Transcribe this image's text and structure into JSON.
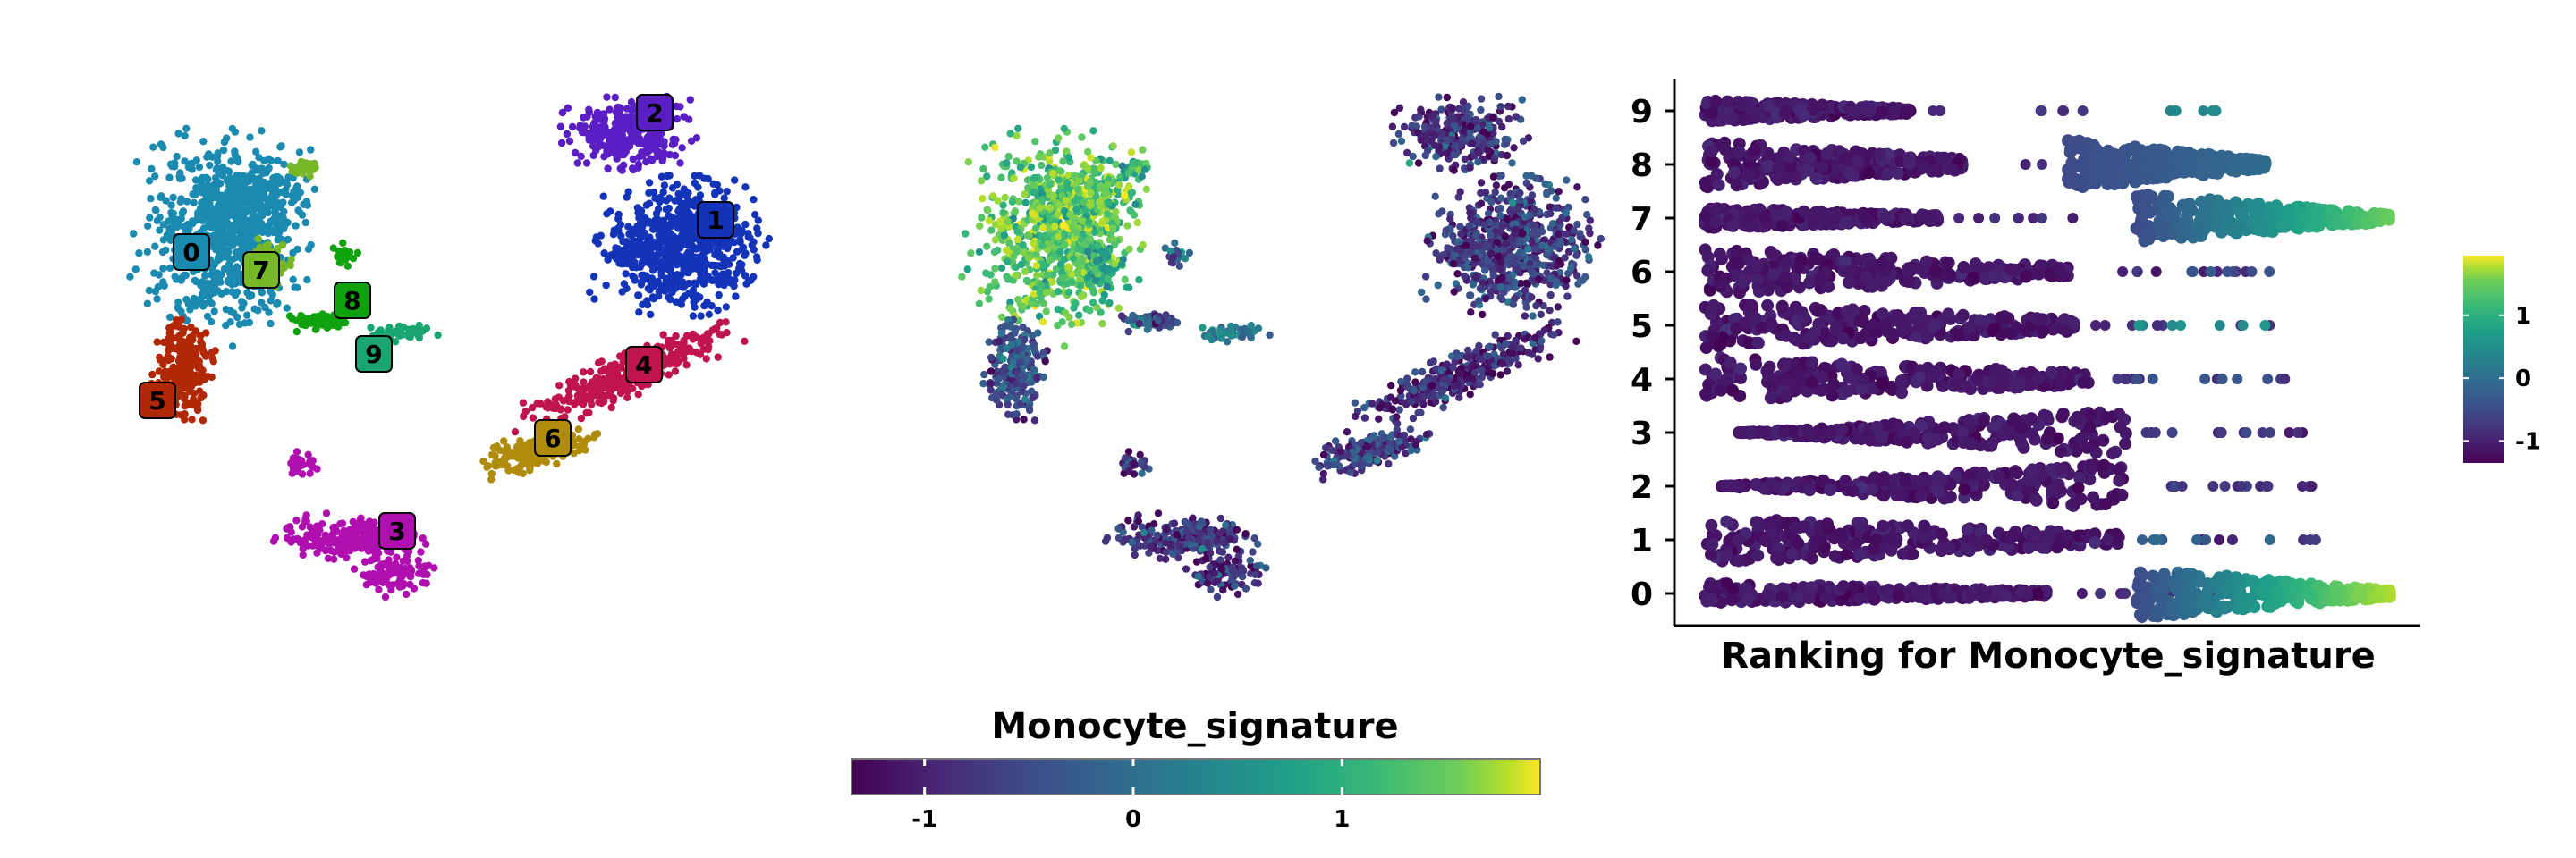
{
  "chart_data": [
    {
      "type": "scatter",
      "subtype": "umap-clusters",
      "title": "",
      "xlabel": "",
      "ylabel": "",
      "grid": false,
      "clusters": [
        {
          "id": "0",
          "label": "0",
          "color": "#1B8AB0"
        },
        {
          "id": "1",
          "label": "1",
          "color": "#1334B8"
        },
        {
          "id": "2",
          "label": "2",
          "color": "#5A1FC4"
        },
        {
          "id": "3",
          "label": "3",
          "color": "#B00FB0"
        },
        {
          "id": "4",
          "label": "4",
          "color": "#C0144C"
        },
        {
          "id": "5",
          "label": "5",
          "color": "#B02806"
        },
        {
          "id": "6",
          "label": "6",
          "color": "#B08C0C"
        },
        {
          "id": "7",
          "label": "7",
          "color": "#76B828"
        },
        {
          "id": "8",
          "label": "8",
          "color": "#10A20E"
        },
        {
          "id": "9",
          "label": "9",
          "color": "#18A570"
        }
      ]
    },
    {
      "type": "scatter",
      "subtype": "umap-feature",
      "feature": "Monocyte_signature",
      "colorbar": {
        "title": "Monocyte_signature",
        "ticks": [
          "-1",
          "0",
          "1"
        ],
        "tick_values": [
          -1,
          0,
          1
        ],
        "range": [
          -1.35,
          1.95
        ],
        "orientation": "horizontal",
        "placement": "bottom"
      }
    },
    {
      "type": "scatter",
      "subtype": "ranking-beeswarm",
      "title": "",
      "xlabel": "Ranking for Monocyte_signature",
      "ylabel": "",
      "categories": [
        "0",
        "1",
        "2",
        "3",
        "4",
        "5",
        "6",
        "7",
        "8",
        "9"
      ],
      "yticks": [
        "9",
        "8",
        "7",
        "6",
        "5",
        "4",
        "3",
        "2",
        "1",
        "0"
      ],
      "colorbar": {
        "ticks": [
          "1",
          "0",
          "-1"
        ],
        "tick_values": [
          1,
          0,
          -1
        ],
        "range": [
          -1.35,
          1.95
        ],
        "orientation": "vertical",
        "placement": "right"
      },
      "clusters": [
        {
          "id": "0",
          "low_segment": [
            0.0,
            0.5
          ],
          "high_segment": [
            0.63,
            1.0
          ],
          "high_level": 1.55
        },
        {
          "id": "1",
          "low_segment": [
            0.0,
            0.61
          ],
          "high_level": -0.5
        },
        {
          "id": "2",
          "low_segment": [
            0.02,
            0.61
          ],
          "high_level": -0.9
        },
        {
          "id": "3",
          "low_segment": [
            0.05,
            0.62
          ],
          "high_level": -0.9
        },
        {
          "id": "4",
          "low_segment": [
            0.0,
            0.56
          ],
          "high_level": -0.7
        },
        {
          "id": "5",
          "low_segment": [
            0.0,
            0.54
          ],
          "high_level": 0.1
        },
        {
          "id": "6",
          "low_segment": [
            0.0,
            0.53
          ],
          "high_level": -0.6
        },
        {
          "id": "7",
          "low_segment": [
            0.0,
            0.34
          ],
          "high_segment": [
            0.63,
            1.0
          ],
          "high_level": 1.2
        },
        {
          "id": "8",
          "low_segment": [
            0.0,
            0.38
          ],
          "high_segment": [
            0.53,
            0.82
          ],
          "high_level": -0.2
        },
        {
          "id": "9",
          "low_segment": [
            0.0,
            0.3
          ],
          "high_level": 0.0
        }
      ]
    }
  ]
}
